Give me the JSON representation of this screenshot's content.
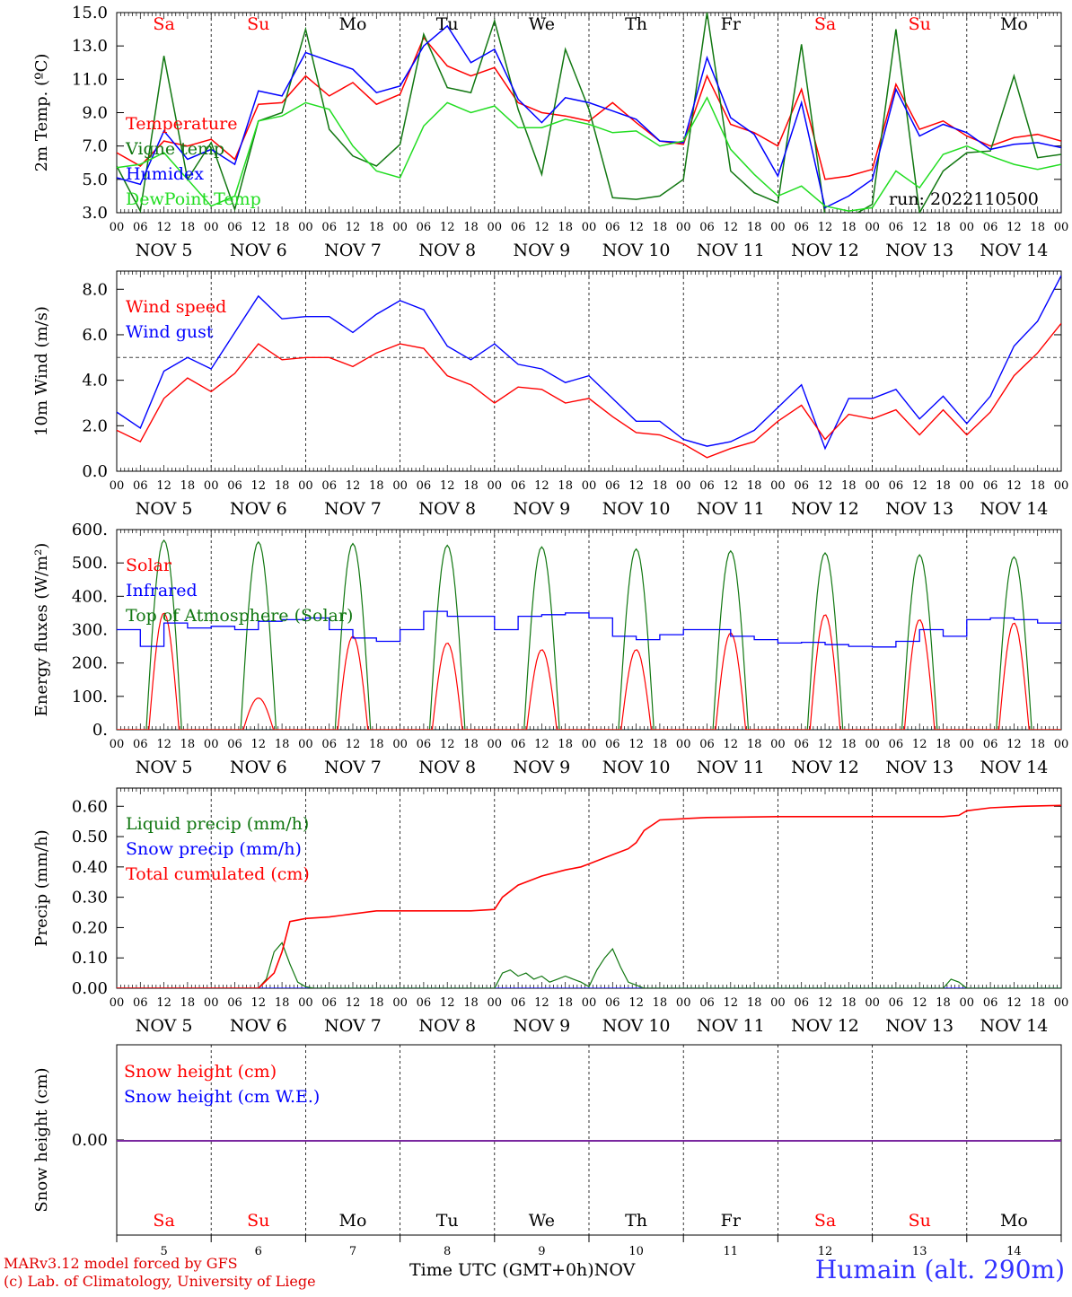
{
  "colors": {
    "red": "#ff0000",
    "blue": "#0000ff",
    "green": "#117711",
    "lightgreen": "#22dd22",
    "purple": "#7a28a0",
    "black": "#000000"
  },
  "days": {
    "names": [
      "Sa",
      "Su",
      "Mo",
      "Tu",
      "We",
      "Th",
      "Fr",
      "Sa",
      "Su",
      "Mo"
    ],
    "weekend": [
      true,
      true,
      false,
      false,
      false,
      false,
      false,
      true,
      true,
      false
    ],
    "date_labels": [
      "NOV  5",
      "NOV  6",
      "NOV  7",
      "NOV  8",
      "NOV  9",
      "NOV 10",
      "NOV 11",
      "NOV 12",
      "NOV 13",
      "NOV 14"
    ],
    "numbers": [
      "5",
      "6",
      "7",
      "8",
      "9",
      "10",
      "11",
      "12",
      "13",
      "14"
    ],
    "hour_ticks": [
      "00",
      "06",
      "12",
      "18"
    ],
    "final_tick": "00"
  },
  "footer": {
    "model": "MARv3.12 model forced by GFS",
    "copyright": "(c) Lab. of Climatology, University of Liege",
    "xaxis_title": "Time UTC (GMT+0h)",
    "month": "NOV",
    "station": "Humain (alt. 290m)"
  },
  "chart_data": [
    {
      "type": "line",
      "ylabel": "2m Temp. (ºC)",
      "ylim": [
        3,
        15
      ],
      "yticks": [
        "3.0",
        "5.0",
        "7.0",
        "9.0",
        "11.0",
        "13.0",
        "15.0"
      ],
      "annotation": "run: 2022110500",
      "x": [
        0,
        6,
        12,
        18,
        24,
        30,
        36,
        42,
        48,
        54,
        60,
        66,
        72,
        78,
        84,
        90,
        96,
        102,
        108,
        114,
        120,
        126,
        132,
        138,
        144,
        150,
        156,
        162,
        168,
        174,
        180,
        186,
        192,
        198,
        204,
        210,
        216,
        222,
        228,
        234,
        240
      ],
      "series": [
        {
          "name": "Temperature",
          "color": "#ff0000",
          "values": [
            6.6,
            5.8,
            7.3,
            7.0,
            7.4,
            6.2,
            9.5,
            9.6,
            11.2,
            10.0,
            10.8,
            9.5,
            10.1,
            13.5,
            11.8,
            11.2,
            11.7,
            9.6,
            9.0,
            8.8,
            8.5,
            9.6,
            8.4,
            7.3,
            7.1,
            11.2,
            8.3,
            7.8,
            7.0,
            10.4,
            5.0,
            5.2,
            5.6,
            10.7,
            8.0,
            8.5,
            7.6,
            7.0,
            7.5,
            7.7,
            7.3
          ]
        },
        {
          "name": "Vigne temp",
          "color": "#117711",
          "values": [
            5.8,
            3.1,
            12.4,
            5.0,
            7.2,
            3.2,
            8.5,
            9.0,
            14.0,
            8.0,
            6.4,
            5.8,
            7.1,
            13.7,
            10.5,
            10.2,
            14.5,
            9.2,
            5.3,
            12.8,
            9.2,
            3.9,
            3.8,
            4.0,
            5.0,
            15.0,
            5.5,
            4.2,
            3.6,
            13.1,
            2.8,
            2.7,
            3.5,
            14.0,
            3.0,
            5.5,
            6.6,
            6.7,
            11.2,
            6.3,
            6.5
          ]
        },
        {
          "name": "Humidex",
          "color": "#0000ff",
          "values": [
            5.1,
            4.7,
            7.9,
            6.2,
            6.8,
            5.9,
            10.3,
            10.0,
            12.6,
            12.1,
            11.6,
            10.2,
            10.6,
            13.0,
            14.2,
            12.0,
            12.8,
            9.8,
            8.4,
            9.9,
            9.6,
            9.1,
            8.6,
            7.3,
            7.2,
            12.3,
            8.7,
            7.7,
            5.2,
            9.6,
            3.3,
            4.0,
            5.0,
            10.4,
            7.6,
            8.3,
            7.8,
            6.8,
            7.1,
            7.2,
            6.9
          ]
        },
        {
          "name": "DewPoint Temp",
          "color": "#22dd22",
          "values": [
            5.7,
            5.9,
            6.6,
            5.0,
            3.4,
            4.0,
            8.5,
            8.8,
            9.6,
            9.2,
            7.0,
            5.5,
            5.1,
            8.2,
            9.6,
            9.0,
            9.4,
            8.1,
            8.1,
            8.6,
            8.3,
            7.8,
            7.9,
            7.0,
            7.3,
            9.9,
            6.8,
            5.3,
            4.0,
            4.6,
            3.4,
            3.1,
            3.3,
            5.5,
            4.5,
            6.5,
            7.0,
            6.4,
            5.9,
            5.6,
            5.9
          ]
        }
      ]
    },
    {
      "type": "line",
      "ylabel": "10m Wind (m/s)",
      "ylim": [
        0,
        8.8
      ],
      "yticks": [
        "0.0",
        "2.0",
        "4.0",
        "6.0",
        "8.0"
      ],
      "reference_line": 5.0,
      "x": [
        0,
        6,
        12,
        18,
        24,
        30,
        36,
        42,
        48,
        54,
        60,
        66,
        72,
        78,
        84,
        90,
        96,
        102,
        108,
        114,
        120,
        126,
        132,
        138,
        144,
        150,
        156,
        162,
        168,
        174,
        180,
        186,
        192,
        198,
        204,
        210,
        216,
        222,
        228,
        234,
        240
      ],
      "series": [
        {
          "name": "Wind speed",
          "color": "#ff0000",
          "values": [
            1.8,
            1.3,
            3.2,
            4.1,
            3.5,
            4.3,
            5.6,
            4.9,
            5.0,
            5.0,
            4.6,
            5.2,
            5.6,
            5.4,
            4.2,
            3.8,
            3.0,
            3.7,
            3.6,
            3.0,
            3.2,
            2.4,
            1.7,
            1.6,
            1.2,
            0.6,
            1.0,
            1.3,
            2.2,
            2.9,
            1.4,
            2.5,
            2.3,
            2.7,
            1.6,
            2.7,
            1.6,
            2.6,
            4.2,
            5.2,
            6.5
          ]
        },
        {
          "name": "Wind gust",
          "color": "#0000ff",
          "values": [
            2.6,
            1.9,
            4.4,
            5.0,
            4.5,
            6.1,
            7.7,
            6.7,
            6.8,
            6.8,
            6.1,
            6.9,
            7.5,
            7.1,
            5.5,
            4.9,
            5.6,
            4.7,
            4.5,
            3.9,
            4.2,
            3.2,
            2.2,
            2.2,
            1.4,
            1.1,
            1.3,
            1.8,
            2.8,
            3.8,
            1.0,
            3.2,
            3.2,
            3.6,
            2.3,
            3.3,
            2.1,
            3.3,
            5.5,
            6.6,
            8.6
          ]
        }
      ]
    },
    {
      "type": "line",
      "ylabel": "Energy fluxes (W/m²)",
      "ylim": [
        0,
        600
      ],
      "yticks": [
        "0.",
        "100.",
        "200.",
        "300.",
        "400.",
        "500.",
        "600."
      ],
      "solar_peak_hour": 12,
      "solar_half_width_hours": 4.5,
      "toa_peaks": [
        568,
        563,
        558,
        553,
        548,
        542,
        536,
        530,
        524,
        518
      ],
      "solar_peaks": [
        350,
        95,
        280,
        260,
        240,
        240,
        290,
        345,
        330,
        320
      ],
      "series": [
        {
          "name": "Solar",
          "color": "#ff0000"
        },
        {
          "name": "Infrared",
          "color": "#0000ff",
          "x": [
            0,
            6,
            12,
            18,
            24,
            30,
            36,
            42,
            48,
            54,
            60,
            66,
            72,
            78,
            84,
            90,
            96,
            102,
            108,
            114,
            120,
            126,
            132,
            138,
            144,
            150,
            156,
            162,
            168,
            174,
            180,
            186,
            192,
            198,
            204,
            210,
            216,
            222,
            228,
            234,
            240
          ],
          "values": [
            300,
            250,
            320,
            305,
            310,
            300,
            325,
            330,
            335,
            300,
            275,
            265,
            300,
            355,
            340,
            340,
            300,
            340,
            345,
            350,
            335,
            280,
            270,
            285,
            300,
            300,
            280,
            270,
            260,
            262,
            255,
            250,
            248,
            265,
            300,
            280,
            330,
            335,
            330,
            320,
            330
          ]
        },
        {
          "name": "Top of Atmosphere (Solar)",
          "color": "#117711"
        }
      ]
    },
    {
      "type": "line",
      "ylabel": "Precip (mm/h)",
      "ylim": [
        0,
        0.66
      ],
      "yticks": [
        "0.00",
        "0.10",
        "0.20",
        "0.30",
        "0.40",
        "0.50",
        "0.60"
      ],
      "series": [
        {
          "name": "Liquid precip (mm/h)",
          "color": "#117711",
          "x": [
            0,
            36,
            38,
            40,
            42,
            44,
            46,
            48,
            50,
            96,
            98,
            100,
            102,
            104,
            106,
            108,
            110,
            112,
            114,
            116,
            118,
            120,
            122,
            124,
            126,
            128,
            130,
            132,
            134,
            210,
            212,
            214,
            216,
            240
          ],
          "values": [
            0,
            0,
            0.03,
            0.12,
            0.15,
            0.08,
            0.02,
            0.005,
            0,
            0,
            0.05,
            0.06,
            0.04,
            0.05,
            0.03,
            0.04,
            0.02,
            0.03,
            0.04,
            0.03,
            0.02,
            0.005,
            0.06,
            0.1,
            0.13,
            0.07,
            0.02,
            0.01,
            0,
            0,
            0.03,
            0.02,
            0,
            0
          ]
        },
        {
          "name": "Snow precip (mm/h)",
          "color": "#0000ff",
          "x": [
            0,
            240
          ],
          "values": [
            0,
            0
          ]
        },
        {
          "name": "Total cumulated (cm)",
          "color": "#ff0000",
          "x": [
            0,
            36,
            40,
            42,
            44,
            48,
            54,
            60,
            66,
            72,
            78,
            84,
            90,
            96,
            98,
            102,
            108,
            114,
            118,
            120,
            126,
            130,
            132,
            134,
            138,
            150,
            168,
            198,
            210,
            214,
            216,
            222,
            230,
            240
          ],
          "values": [
            0,
            0,
            0.05,
            0.12,
            0.22,
            0.23,
            0.235,
            0.245,
            0.255,
            0.255,
            0.255,
            0.255,
            0.255,
            0.26,
            0.3,
            0.34,
            0.37,
            0.39,
            0.4,
            0.41,
            0.44,
            0.46,
            0.48,
            0.52,
            0.555,
            0.563,
            0.566,
            0.566,
            0.566,
            0.57,
            0.585,
            0.595,
            0.6,
            0.603
          ]
        }
      ]
    },
    {
      "type": "line",
      "ylabel": "Snow height (cm)",
      "yticks": [
        "0.00"
      ],
      "series": [
        {
          "name": "Snow height (cm)",
          "color": "#ff0000",
          "x": [
            0,
            240
          ],
          "values": [
            0,
            0
          ]
        },
        {
          "name": "Snow height (cm W.E.)",
          "color": "#0000ff",
          "x": [
            0,
            240
          ],
          "values": [
            0,
            0
          ]
        }
      ]
    }
  ]
}
